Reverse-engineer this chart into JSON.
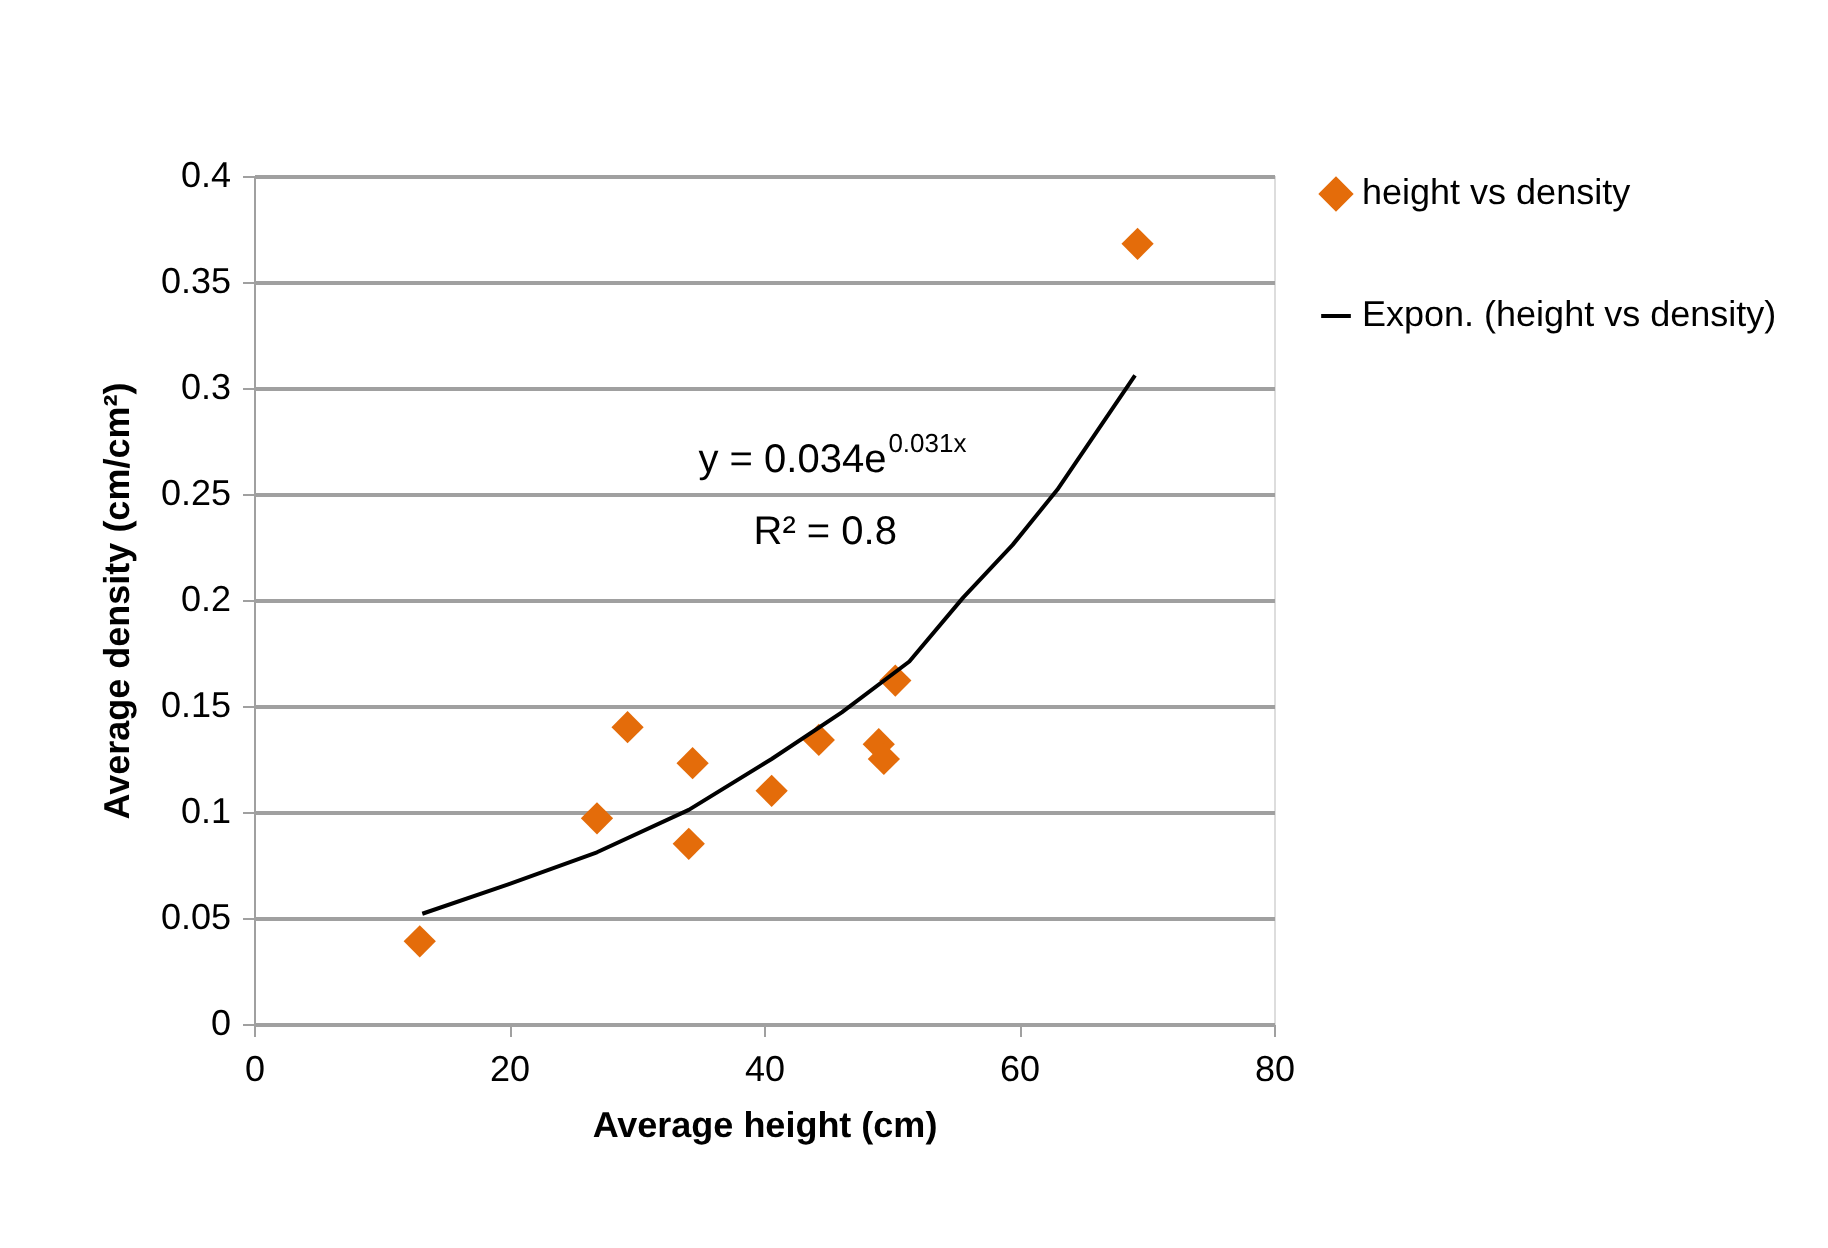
{
  "chart_data": {
    "type": "scatter",
    "xlabel": "Average height  (cm)",
    "ylabel": "Average density  (cm/cm²)",
    "xlim": [
      0,
      80
    ],
    "xticks": [
      0,
      20,
      40,
      60,
      80
    ],
    "ylim": [
      0,
      0.4
    ],
    "yticks": [
      0,
      0.05,
      0.1,
      0.15,
      0.2,
      0.25,
      0.3,
      0.35,
      0.4
    ],
    "grid": "y",
    "legend": "right",
    "marker": "diamond",
    "annotations": [
      "y = 0.034e$^{0.031x}$",
      "R² = 0.8"
    ],
    "series": [
      {
        "name": "height vs density",
        "color": "#e46c0a",
        "x": [
          13.0,
          26.9,
          29.3,
          34.4,
          34.1,
          40.6,
          44.3,
          49.0,
          49.4,
          50.3,
          69.3
        ],
        "values": [
          0.039,
          0.097,
          0.14,
          0.123,
          0.085,
          0.11,
          0.134,
          0.132,
          0.125,
          0.162,
          0.368
        ]
      },
      {
        "name": "Expon. (height vs density)",
        "color": "#000000",
        "type": "line",
        "line_style": "solid",
        "marker": "none",
        "x": [
          13.2,
          20.0,
          26.9,
          34.1,
          40.6,
          46.1,
          51.4,
          55.6,
          59.5,
          63.0,
          67.3,
          69.1
        ],
        "values": [
          0.052,
          0.066,
          0.081,
          0.101,
          0.125,
          0.147,
          0.171,
          0.201,
          0.226,
          0.252,
          0.29,
          0.306
        ]
      }
    ]
  }
}
